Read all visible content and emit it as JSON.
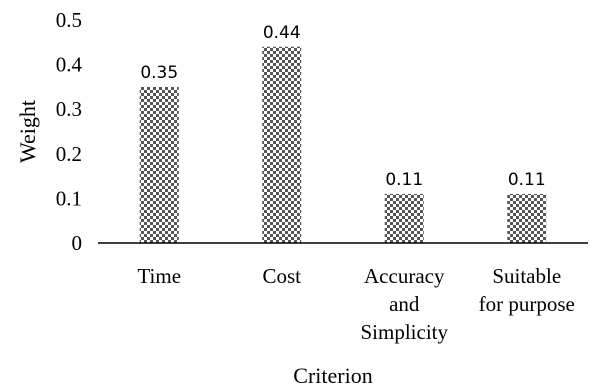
{
  "chart_data": {
    "type": "bar",
    "categories": [
      [
        "Time"
      ],
      [
        "Cost"
      ],
      [
        "Accuracy",
        "and",
        "Simplicity"
      ],
      [
        "Suitable",
        "for purpose"
      ]
    ],
    "values": [
      0.35,
      0.44,
      0.11,
      0.11
    ],
    "data_labels": [
      "0.35",
      "0.44",
      "0.11",
      "0.11"
    ],
    "title": "",
    "xlabel": "Criterion",
    "ylabel": "Weight",
    "ylim": [
      0,
      0.5
    ],
    "yticks": [
      "0",
      "0.1",
      "0.2",
      "0.3",
      "0.4",
      "0.5"
    ],
    "grid": false,
    "legend": "none",
    "bar_pattern": "checkerboard",
    "colors": {
      "bar_dark": "#555555",
      "bar_light": "#ffffff",
      "axis": "#000000"
    }
  }
}
